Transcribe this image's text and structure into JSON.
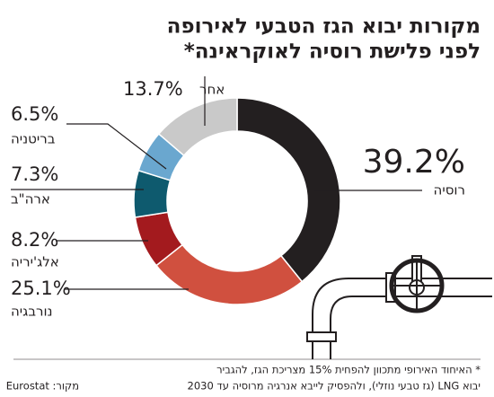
{
  "chart_data": {
    "type": "donut",
    "title": [
      "מקורות יבוא הגז הטבעי לאירופה",
      "לפני פלישת רוסיה לאוקראינה*"
    ],
    "categories": [
      "רוסיה",
      "נורבגיה",
      "אלג'יריה",
      "ארה\"ב",
      "בריטניה",
      "אחר"
    ],
    "values": [
      39.2,
      25.1,
      8.2,
      7.3,
      6.5,
      13.7
    ],
    "value_labels": [
      "39.2%",
      "25.1%",
      "8.2%",
      "7.3%",
      "6.5%",
      "13.7%"
    ],
    "colors": [
      "#231f20",
      "#d0503f",
      "#a31a1e",
      "#0e5a6e",
      "#6aa7cf",
      "#c9c9c9"
    ],
    "footnote": [
      "* האיחוד האירופי מתכוון להפחית 15% מצריכת הגז, להגביר",
      "יבוא LNG (גז טבעי נוזלי), ולהפסיק לייבא אנרגיה מרוסיה עד 2030"
    ],
    "source": "מקור: Eurostat"
  }
}
